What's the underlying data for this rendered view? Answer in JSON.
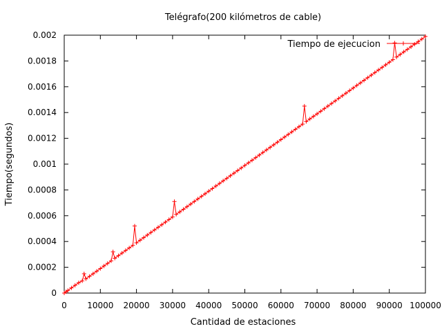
{
  "chart_data": {
    "type": "scatter",
    "title": "Telégrafo(200 kilómetros de cable)",
    "xlabel": "Cantidad de estaciones",
    "ylabel": "Tiempo(segundos)",
    "xlim": [
      0,
      100000
    ],
    "ylim": [
      0,
      0.002
    ],
    "xticks": [
      0,
      10000,
      20000,
      30000,
      40000,
      50000,
      60000,
      70000,
      80000,
      90000,
      100000
    ],
    "xtick_labels": [
      "0",
      "10000",
      "20000",
      "30000",
      "40000",
      "50000",
      "60000",
      "70000",
      "80000",
      "90000",
      "100000"
    ],
    "yticks": [
      0,
      0.0002,
      0.0004,
      0.0006,
      0.0008,
      0.001,
      0.0012,
      0.0014,
      0.0016,
      0.0018,
      0.002
    ],
    "ytick_labels": [
      "0",
      "0.0002",
      "0.0004",
      "0.0006",
      "0.0008",
      "0.001",
      "0.0012",
      "0.0014",
      "0.0016",
      "0.0018",
      "0.002"
    ],
    "grid": false,
    "legend_position": "top-right",
    "marker": "+",
    "series": [
      {
        "name": "Tiempo de ejecucion",
        "color": "#ff0000",
        "points": [
          [
            0,
            0.0
          ],
          [
            500,
            1e-05
          ],
          [
            1000,
            2e-05
          ],
          [
            2000,
            4e-05
          ],
          [
            3000,
            6e-05
          ],
          [
            4000,
            8e-05
          ],
          [
            5000,
            9.5e-05
          ],
          [
            5500,
            0.00015
          ],
          [
            6000,
            0.00011
          ],
          [
            7000,
            0.00013
          ],
          [
            8000,
            0.00015
          ],
          [
            9000,
            0.00017
          ],
          [
            10000,
            0.00019
          ],
          [
            11000,
            0.00021
          ],
          [
            12000,
            0.00023
          ],
          [
            13000,
            0.00025
          ],
          [
            13500,
            0.00032
          ],
          [
            14000,
            0.00027
          ],
          [
            15000,
            0.00029
          ],
          [
            16000,
            0.00031
          ],
          [
            17000,
            0.00033
          ],
          [
            18000,
            0.00035
          ],
          [
            19000,
            0.00037
          ],
          [
            19500,
            0.00052
          ],
          [
            20000,
            0.00039
          ],
          [
            21000,
            0.00041
          ],
          [
            22000,
            0.00043
          ],
          [
            23000,
            0.00045
          ],
          [
            24000,
            0.00047
          ],
          [
            25000,
            0.00049
          ],
          [
            26000,
            0.00051
          ],
          [
            27000,
            0.00053
          ],
          [
            28000,
            0.00055
          ],
          [
            29000,
            0.00057
          ],
          [
            30000,
            0.00059
          ],
          [
            30500,
            0.00071
          ],
          [
            31000,
            0.00061
          ],
          [
            32000,
            0.00063
          ],
          [
            33000,
            0.00065
          ],
          [
            34000,
            0.00067
          ],
          [
            35000,
            0.00069
          ],
          [
            36000,
            0.00071
          ],
          [
            37000,
            0.00073
          ],
          [
            38000,
            0.00075
          ],
          [
            39000,
            0.00077
          ],
          [
            40000,
            0.00079
          ],
          [
            41000,
            0.00081
          ],
          [
            42000,
            0.00083
          ],
          [
            43000,
            0.00085
          ],
          [
            44000,
            0.00087
          ],
          [
            45000,
            0.00089
          ],
          [
            46000,
            0.00091
          ],
          [
            47000,
            0.00093
          ],
          [
            48000,
            0.00095
          ],
          [
            49000,
            0.00097
          ],
          [
            50000,
            0.00099
          ],
          [
            51000,
            0.00101
          ],
          [
            52000,
            0.00103
          ],
          [
            53000,
            0.00105
          ],
          [
            54000,
            0.00107
          ],
          [
            55000,
            0.00109
          ],
          [
            56000,
            0.00111
          ],
          [
            57000,
            0.00113
          ],
          [
            58000,
            0.00115
          ],
          [
            59000,
            0.00117
          ],
          [
            60000,
            0.00119
          ],
          [
            61000,
            0.00121
          ],
          [
            62000,
            0.00123
          ],
          [
            63000,
            0.00125
          ],
          [
            64000,
            0.00127
          ],
          [
            65000,
            0.00129
          ],
          [
            66000,
            0.00131
          ],
          [
            66500,
            0.00145
          ],
          [
            67000,
            0.00133
          ],
          [
            68000,
            0.00135
          ],
          [
            69000,
            0.00137
          ],
          [
            70000,
            0.00139
          ],
          [
            71000,
            0.00141
          ],
          [
            72000,
            0.00143
          ],
          [
            73000,
            0.00145
          ],
          [
            74000,
            0.00147
          ],
          [
            75000,
            0.00149
          ],
          [
            76000,
            0.00151
          ],
          [
            77000,
            0.00153
          ],
          [
            78000,
            0.00155
          ],
          [
            79000,
            0.00157
          ],
          [
            80000,
            0.00159
          ],
          [
            81000,
            0.00161
          ],
          [
            82000,
            0.00163
          ],
          [
            83000,
            0.00165
          ],
          [
            84000,
            0.00167
          ],
          [
            85000,
            0.00169
          ],
          [
            86000,
            0.00171
          ],
          [
            87000,
            0.00173
          ],
          [
            88000,
            0.00175
          ],
          [
            89000,
            0.00177
          ],
          [
            90000,
            0.00179
          ],
          [
            91000,
            0.00181
          ],
          [
            91500,
            0.00194
          ],
          [
            92000,
            0.00183
          ],
          [
            93000,
            0.00185
          ],
          [
            94000,
            0.00187
          ],
          [
            95000,
            0.00189
          ],
          [
            96000,
            0.00191
          ],
          [
            97000,
            0.00193
          ],
          [
            98000,
            0.00195
          ],
          [
            99000,
            0.00197
          ],
          [
            100000,
            0.00199
          ]
        ]
      }
    ]
  }
}
